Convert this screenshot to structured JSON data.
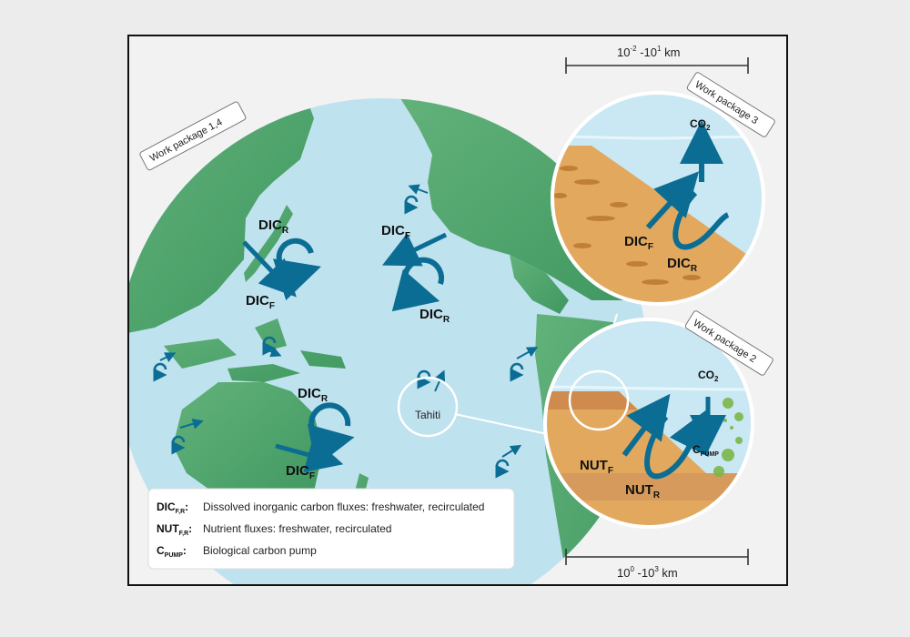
{
  "scale_top": {
    "base": "10",
    "exp1": "-2",
    "sep": " -10",
    "exp2": "1",
    "unit": " km"
  },
  "scale_bottom": {
    "base": "10",
    "exp1": "0",
    "sep": " -10",
    "exp2": "3",
    "unit": " km"
  },
  "tags": {
    "wp14": "Work package 1,4",
    "wp3": "Work package 3",
    "wp2": "Work package 2"
  },
  "map_labels": {
    "dic_r_west": {
      "main": "DIC",
      "sub": "R"
    },
    "dic_f_west": {
      "main": "DIC",
      "sub": "F"
    },
    "dic_f_east": {
      "main": "DIC",
      "sub": "F"
    },
    "dic_r_east": {
      "main": "DIC",
      "sub": "R"
    },
    "dic_r_aus": {
      "main": "DIC",
      "sub": "R"
    },
    "dic_f_aus": {
      "main": "DIC",
      "sub": "F"
    },
    "tahiti": "Tahiti"
  },
  "inset_wp3": {
    "co2": {
      "main": "CO",
      "sub": "2"
    },
    "dic_f": {
      "main": "DIC",
      "sub": "F"
    },
    "dic_r": {
      "main": "DIC",
      "sub": "R"
    }
  },
  "inset_wp2": {
    "co2": {
      "main": "CO",
      "sub": "2"
    },
    "c_pump": {
      "main": "C",
      "sub": "PUMP"
    },
    "nut_f": {
      "main": "NUT",
      "sub": "F"
    },
    "nut_r": {
      "main": "NUT",
      "sub": "R"
    }
  },
  "legend": [
    {
      "key": "DIC",
      "sub": "F,R",
      "text": "Dissolved inorganic carbon fluxes: freshwater, recirculated"
    },
    {
      "key": "NUT",
      "sub": "F,R",
      "text": "Nutrient fluxes: freshwater, recirculated"
    },
    {
      "key": "C",
      "sub": "PUMP",
      "text": "Biological carbon pump"
    }
  ],
  "colors": {
    "ocean": "#bfe2ef",
    "land": "#54a86e",
    "arrow": "#0b6d93",
    "sediment": "#e2a85e",
    "frame": "#111111"
  }
}
